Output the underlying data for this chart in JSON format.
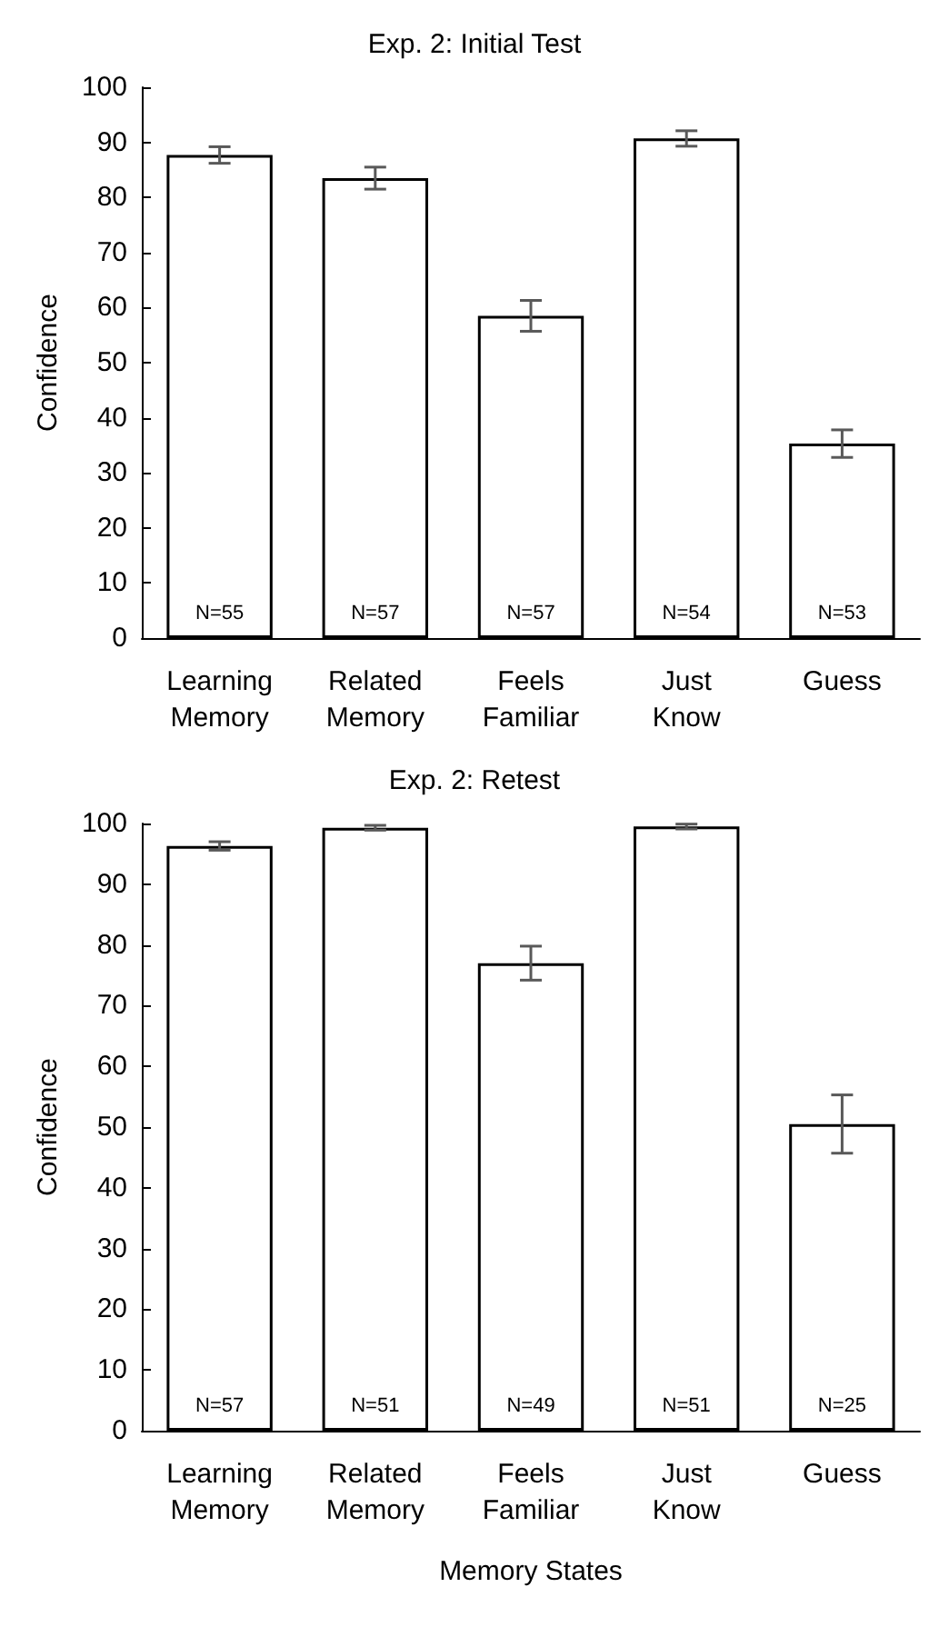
{
  "chart_data": [
    {
      "type": "bar",
      "title": "Exp. 2: Initial Test",
      "ylabel": "Confidence",
      "categories": [
        "Learning Memory",
        "Related Memory",
        "Feels Familiar",
        "Just Know",
        "Guess"
      ],
      "values": [
        87.7,
        83.5,
        58.5,
        90.7,
        35.3
      ],
      "errors": [
        1.5,
        2,
        2.8,
        1.4,
        2.5
      ],
      "color": "#ffffff",
      "ylim": [
        0,
        100
      ],
      "yticks": [
        0,
        10,
        20,
        30,
        40,
        50,
        60,
        70,
        80,
        90,
        100
      ],
      "annotations": [
        "N=55",
        "N=57",
        "N=57",
        "N=54",
        "N=53"
      ]
    },
    {
      "type": "bar",
      "title": "Exp. 2: Retest",
      "ylabel": "Confidence",
      "xlabel": "Memory States",
      "categories": [
        "Learning Memory",
        "Related Memory",
        "Feels Familiar",
        "Just Know",
        "Guess"
      ],
      "values": [
        96.3,
        99.3,
        77,
        99.5,
        50.5
      ],
      "errors": [
        0.7,
        0.4,
        2.8,
        0.4,
        4.8
      ],
      "color": "#ffffff",
      "ylim": [
        0,
        100
      ],
      "yticks": [
        0,
        10,
        20,
        30,
        40,
        50,
        60,
        70,
        80,
        90,
        100
      ],
      "annotations": [
        "N=57",
        "N=51",
        "N=49",
        "N=51",
        "N=25"
      ]
    }
  ]
}
